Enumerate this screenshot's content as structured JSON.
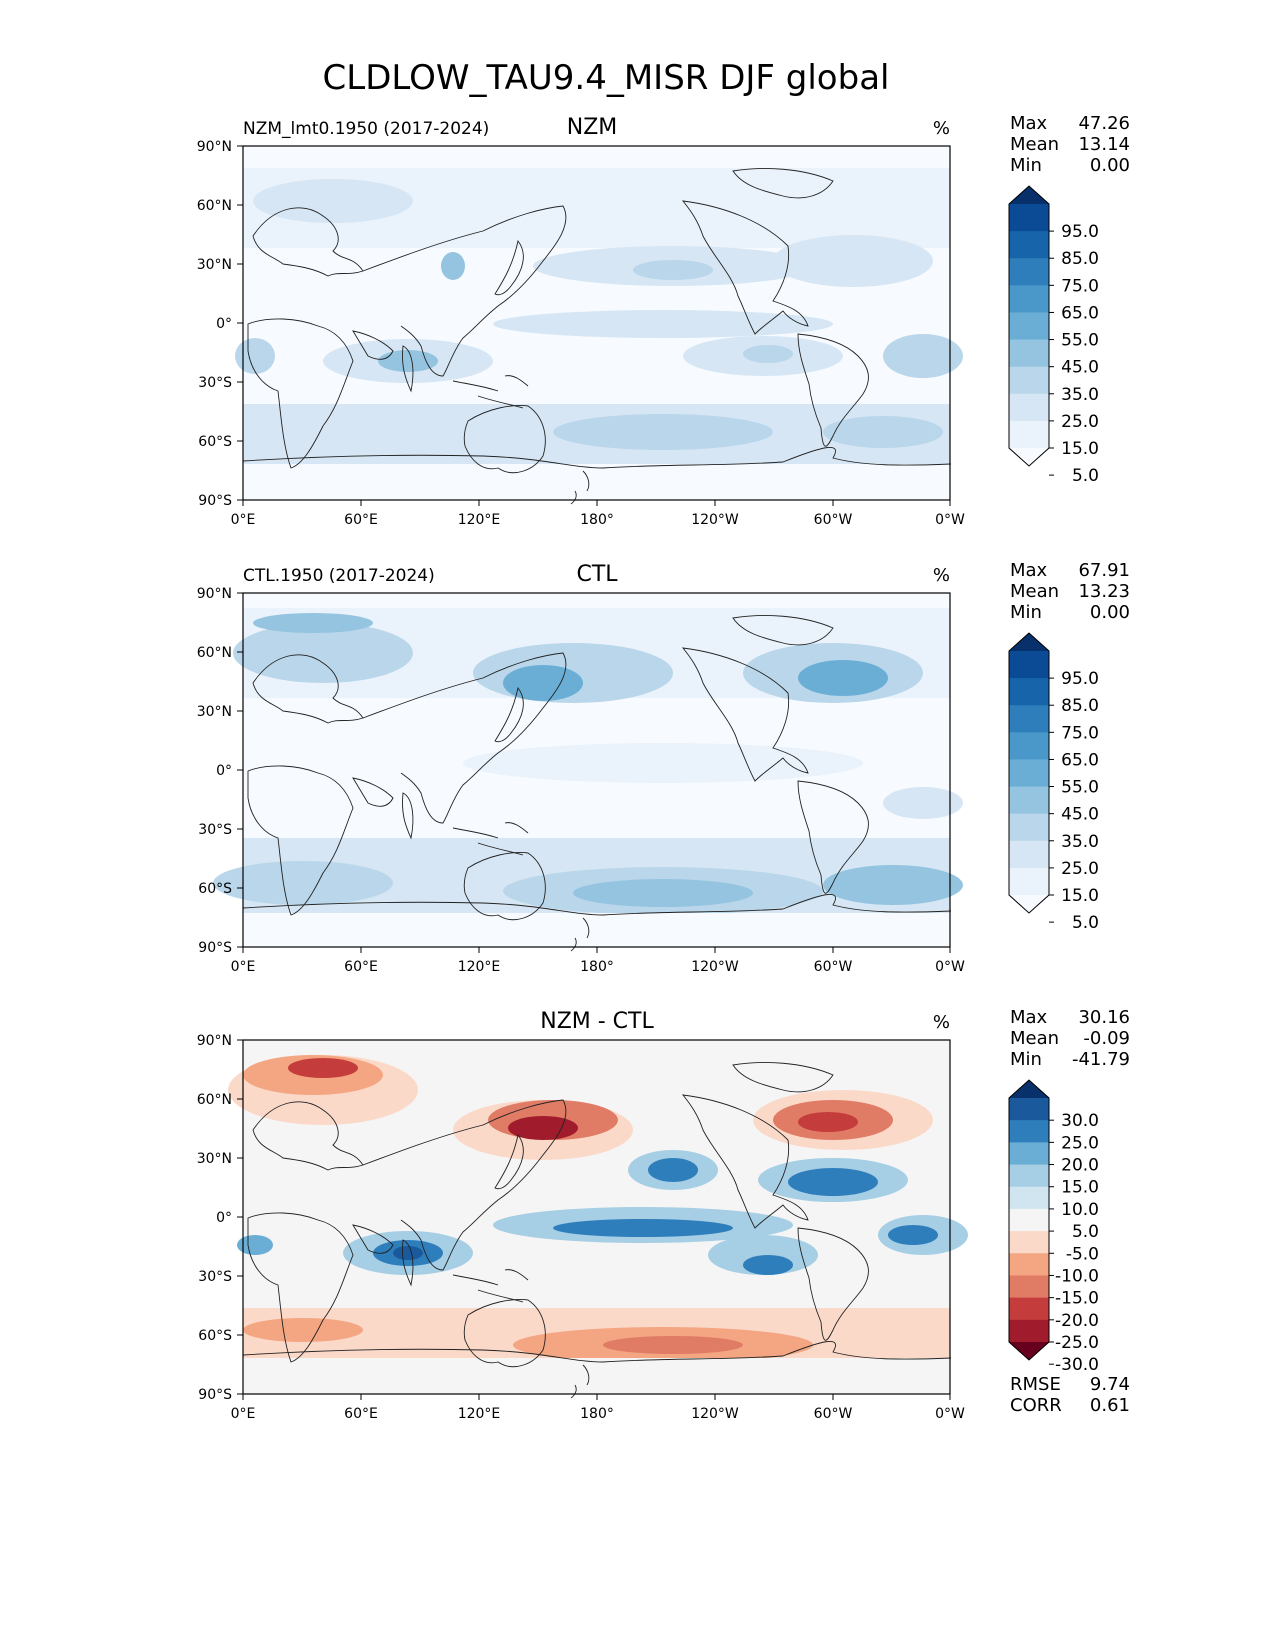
{
  "title": "CLDLOW_TAU9.4_MISR DJF global",
  "chart_data": [
    {
      "type": "heatmap",
      "panel_title": "NZM",
      "left_label": "NZM_lmt0.1950 (2017-2024)",
      "units": "%",
      "stats": {
        "max_label": "Max",
        "max": "47.26",
        "mean_label": "Mean",
        "mean": "13.14",
        "min_label": "Min",
        "min": "0.00"
      },
      "colorbar": {
        "levels": [
          "95.0",
          "85.0",
          "75.0",
          "65.0",
          "55.0",
          "45.0",
          "35.0",
          "25.0",
          "15.0",
          "5.0"
        ],
        "colors": [
          "#08306b",
          "#0b4a95",
          "#1764ab",
          "#2f7ebc",
          "#4a98c9",
          "#6aaed6",
          "#94c4df",
          "#b9d6ea",
          "#d6e6f4",
          "#eaf2fb",
          "#f7fbff"
        ]
      },
      "lat_ticks": [
        "90°N",
        "60°N",
        "30°N",
        "0°",
        "30°S",
        "60°S",
        "90°S"
      ],
      "lon_ticks": [
        "0°E",
        "60°E",
        "120°E",
        "180°",
        "120°W",
        "60°W",
        "0°W"
      ]
    },
    {
      "type": "heatmap",
      "panel_title": "CTL",
      "left_label": "CTL.1950 (2017-2024)",
      "units": "%",
      "stats": {
        "max_label": "Max",
        "max": "67.91",
        "mean_label": "Mean",
        "mean": "13.23",
        "min_label": "Min",
        "min": "0.00"
      },
      "colorbar": {
        "levels": [
          "95.0",
          "85.0",
          "75.0",
          "65.0",
          "55.0",
          "45.0",
          "35.0",
          "25.0",
          "15.0",
          "5.0"
        ],
        "colors": [
          "#08306b",
          "#0b4a95",
          "#1764ab",
          "#2f7ebc",
          "#4a98c9",
          "#6aaed6",
          "#94c4df",
          "#b9d6ea",
          "#d6e6f4",
          "#eaf2fb",
          "#f7fbff"
        ]
      },
      "lat_ticks": [
        "90°N",
        "60°N",
        "30°N",
        "0°",
        "30°S",
        "60°S",
        "90°S"
      ],
      "lon_ticks": [
        "0°E",
        "60°E",
        "120°E",
        "180°",
        "120°W",
        "60°W",
        "0°W"
      ]
    },
    {
      "type": "heatmap",
      "panel_title": "NZM - CTL",
      "left_label": "",
      "units": "%",
      "stats": {
        "max_label": "Max",
        "max": "30.16",
        "mean_label": "Mean",
        "mean": "-0.09",
        "min_label": "Min",
        "min": "-41.79"
      },
      "colorbar": {
        "levels": [
          "30.0",
          "25.0",
          "20.0",
          "15.0",
          "10.0",
          "5.0",
          "-5.0",
          "-10.0",
          "-15.0",
          "-20.0",
          "-25.0",
          "-30.0"
        ],
        "colors": [
          "#08306b",
          "#1a5a9c",
          "#2f7ebc",
          "#6aaed6",
          "#a6cee4",
          "#d1e5f0",
          "#f5f5f5",
          "#fbd9c9",
          "#f4a582",
          "#e07b65",
          "#c43c3c",
          "#a01c2c",
          "#67001f"
        ]
      },
      "lat_ticks": [
        "90°N",
        "60°N",
        "30°N",
        "0°",
        "30°S",
        "60°S",
        "90°S"
      ],
      "lon_ticks": [
        "0°E",
        "60°E",
        "120°E",
        "180°",
        "120°W",
        "60°W",
        "0°W"
      ],
      "rmse_label": "RMSE",
      "rmse": "9.74",
      "corr_label": "CORR",
      "corr": "0.61"
    }
  ]
}
